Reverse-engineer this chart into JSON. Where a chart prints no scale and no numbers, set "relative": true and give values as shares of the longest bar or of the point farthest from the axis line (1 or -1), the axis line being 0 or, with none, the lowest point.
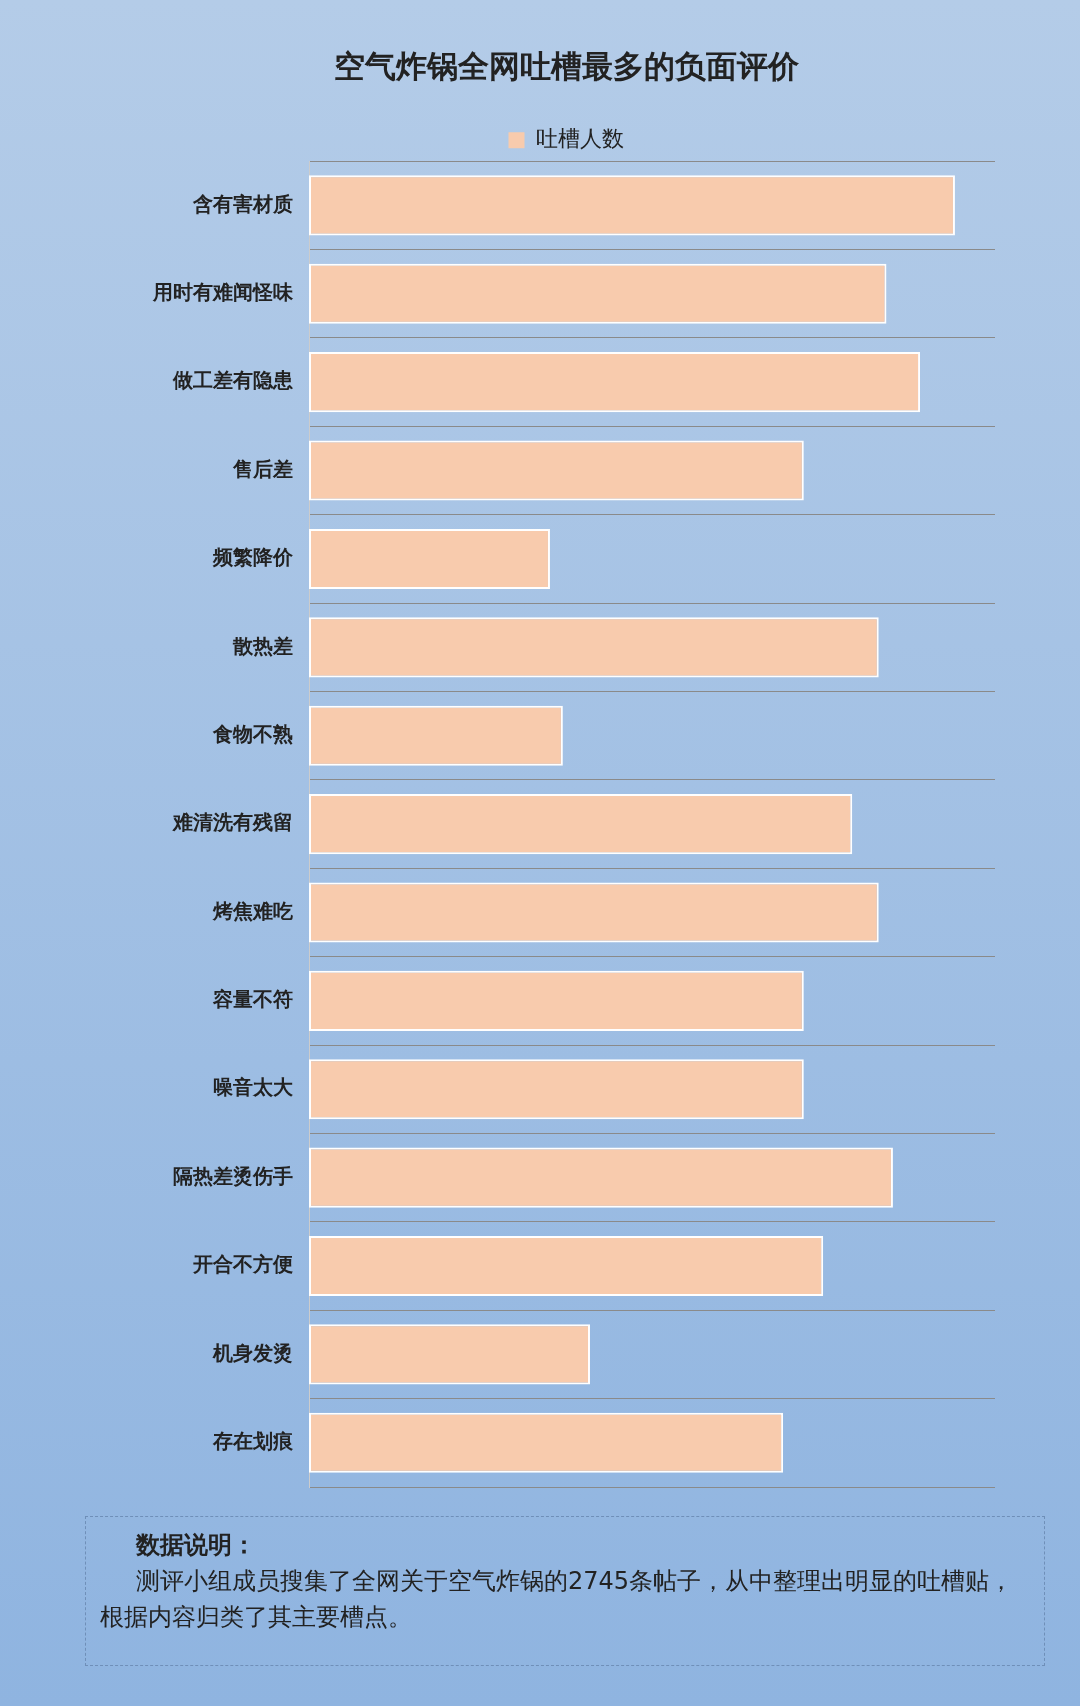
{
  "chart_data": {
    "type": "bar",
    "orientation": "horizontal",
    "relative": true,
    "title": "空气炸锅全网吐槽最多的负面评价",
    "categories": [
      "含有害材质",
      "用时有难闻怪味",
      "做工差有隐患",
      "售后差",
      "频繁降价",
      "散热差",
      "食物不熟",
      "难清洗有残留",
      "烤焦难吃",
      "容量不符",
      "噪音太大",
      "隔热差烫伤手",
      "开合不方便",
      "机身发烫",
      "存在划痕"
    ],
    "series": [
      {
        "name": "吐槽人数",
        "color": "#f8cbad",
        "values": [
          1,
          0.894,
          0.946,
          0.766,
          0.373,
          0.882,
          0.393,
          0.841,
          0.882,
          0.766,
          0.766,
          0.904,
          0.796,
          0.435,
          0.734
        ]
      }
    ],
    "grid": "y",
    "legend": "top",
    "annotations": [
      "数据说明：",
      "测评小组成员搜集了全网关于空气炸锅的2745条帖子，从中整理出明显的吐槽贴，根据内容归类了其主要槽点。"
    ]
  }
}
